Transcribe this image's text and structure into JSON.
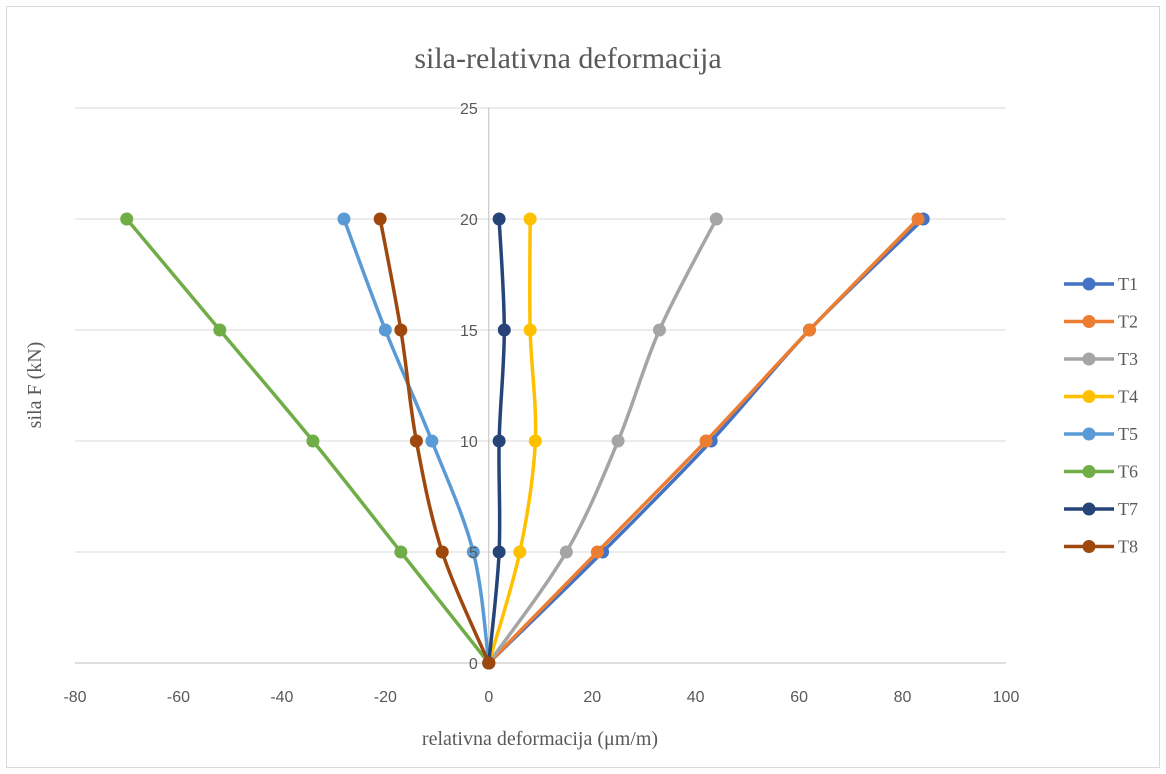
{
  "chart_data": {
    "type": "line",
    "title": "sila-relativna deformacija",
    "xlabel": "relativna deformacija (μm/m)",
    "ylabel": "sila F (kN)",
    "xlim": [
      -80,
      100
    ],
    "ylim": [
      0,
      25
    ],
    "xticks": [
      -80,
      -60,
      -40,
      -20,
      0,
      20,
      40,
      60,
      80,
      100
    ],
    "yticks": [
      0,
      5,
      10,
      15,
      20,
      25
    ],
    "grid": "horizontal",
    "legend": "right",
    "series": [
      {
        "name": "T1",
        "color": "#4472C4",
        "x": [
          0,
          22,
          43,
          62,
          84
        ],
        "y": [
          0,
          5,
          10,
          15,
          20
        ]
      },
      {
        "name": "T2",
        "color": "#ED7D31",
        "x": [
          0,
          21,
          42,
          62,
          83
        ],
        "y": [
          0,
          5,
          10,
          15,
          20
        ]
      },
      {
        "name": "T3",
        "color": "#A5A5A5",
        "x": [
          0,
          15,
          25,
          33,
          44
        ],
        "y": [
          0,
          5,
          10,
          15,
          20
        ]
      },
      {
        "name": "T4",
        "color": "#FFC000",
        "x": [
          0,
          6,
          9,
          8,
          8
        ],
        "y": [
          0,
          5,
          10,
          15,
          20
        ]
      },
      {
        "name": "T5",
        "color": "#5B9BD5",
        "x": [
          0,
          -3,
          -11,
          -20,
          -28
        ],
        "y": [
          0,
          5,
          10,
          15,
          20
        ]
      },
      {
        "name": "T6",
        "color": "#70AD47",
        "x": [
          0,
          -17,
          -34,
          -52,
          -70
        ],
        "y": [
          0,
          5,
          10,
          15,
          20
        ]
      },
      {
        "name": "T7",
        "color": "#264478",
        "x": [
          0,
          2,
          2,
          3,
          2
        ],
        "y": [
          0,
          5,
          10,
          15,
          20
        ]
      },
      {
        "name": "T8",
        "color": "#9E480E",
        "x": [
          0,
          -9,
          -14,
          -17,
          -21
        ],
        "y": [
          0,
          5,
          10,
          15,
          20
        ]
      }
    ]
  }
}
